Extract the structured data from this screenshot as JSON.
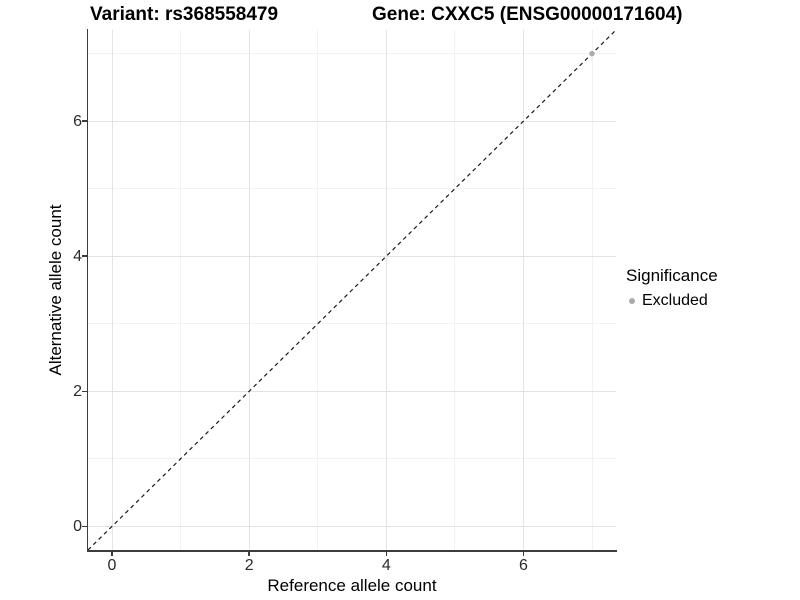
{
  "chart_data": {
    "type": "scatter",
    "title_left": "Variant: rs368558479",
    "title_right": "Gene: CXXC5 (ENSG00000171604)",
    "xlabel": "Reference allele count",
    "ylabel": "Alternative allele count",
    "xlim": [
      -0.35,
      7.35
    ],
    "ylim": [
      -0.35,
      7.35
    ],
    "x_major_ticks": [
      0,
      2,
      4,
      6
    ],
    "x_minor_ticks": [
      1,
      3,
      5,
      7
    ],
    "y_major_ticks": [
      0,
      2,
      4,
      6
    ],
    "y_minor_ticks": [
      1,
      3,
      5,
      7
    ],
    "grid": true,
    "identity_line": {
      "equation": "y = x",
      "style": "dashed",
      "color": "#1a1a1a"
    },
    "series": [
      {
        "name": "Excluded",
        "color": "#ababab",
        "points": [
          {
            "x": 7,
            "y": 7
          }
        ]
      }
    ],
    "legend": {
      "title": "Significance",
      "position": "right",
      "items": [
        {
          "label": "Excluded",
          "color": "#ababab"
        }
      ]
    }
  },
  "colors": {
    "background": "#ffffff",
    "axis_line": "#3c3c3c",
    "grid_major": "#e3e3e3",
    "grid_minor": "#f1f1f1",
    "tick_text": "#2b2b2b",
    "point": "#ababab"
  }
}
